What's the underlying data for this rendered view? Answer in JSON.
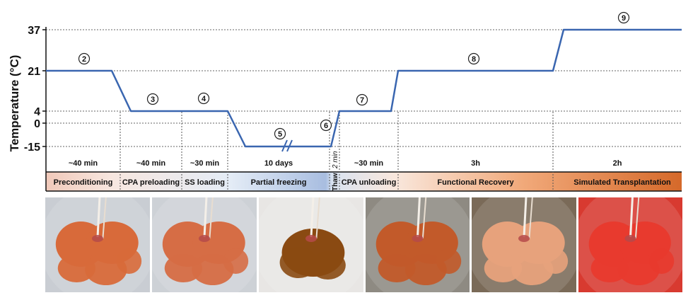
{
  "chart_data": {
    "type": "line",
    "ylabel": "Temperature (°C)",
    "yticks": [
      37,
      21,
      4,
      0,
      -15
    ],
    "line_color": "#3a66b0",
    "markers": [
      "2",
      "3",
      "4",
      "5",
      "6",
      "7",
      "8",
      "9"
    ],
    "stages": [
      {
        "duration": "~40 min",
        "label": "Preconditioning"
      },
      {
        "duration": "~40 min",
        "label": "CPA preloading"
      },
      {
        "duration": "~30 min",
        "label": "SS loading"
      },
      {
        "duration": "10 days",
        "label": "Partial freezing"
      },
      {
        "duration": "2 min",
        "label": "Thaw"
      },
      {
        "duration": "~30 min",
        "label": "CPA unloading"
      },
      {
        "duration": "3h",
        "label": "Functional Recovery"
      },
      {
        "duration": "2h",
        "label": "Simulated Transplantation"
      }
    ],
    "series": [
      {
        "values": [
          21,
          21,
          4,
          4,
          4,
          -15,
          -15,
          -15,
          4,
          4,
          21,
          21,
          37,
          37
        ]
      }
    ]
  },
  "photos": [
    {
      "name": "photo-preconditioning-liver",
      "tone": "#d86a3a",
      "bg": "#c9cdd3"
    },
    {
      "name": "photo-ss-loading-liver",
      "tone": "#d66d45",
      "bg": "#cdd1d6"
    },
    {
      "name": "photo-partial-frozen-liver",
      "tone": "#8a4a12",
      "bg": "#e8e6e4"
    },
    {
      "name": "photo-cpa-unloading-liver",
      "tone": "#c25a2a",
      "bg": "#8e8a82"
    },
    {
      "name": "photo-functional-recovery-liver",
      "tone": "#e7a27c",
      "bg": "#7a6a58"
    },
    {
      "name": "photo-simulated-transplantation-liver",
      "tone": "#e83a2e",
      "bg": "#d83a30"
    }
  ]
}
